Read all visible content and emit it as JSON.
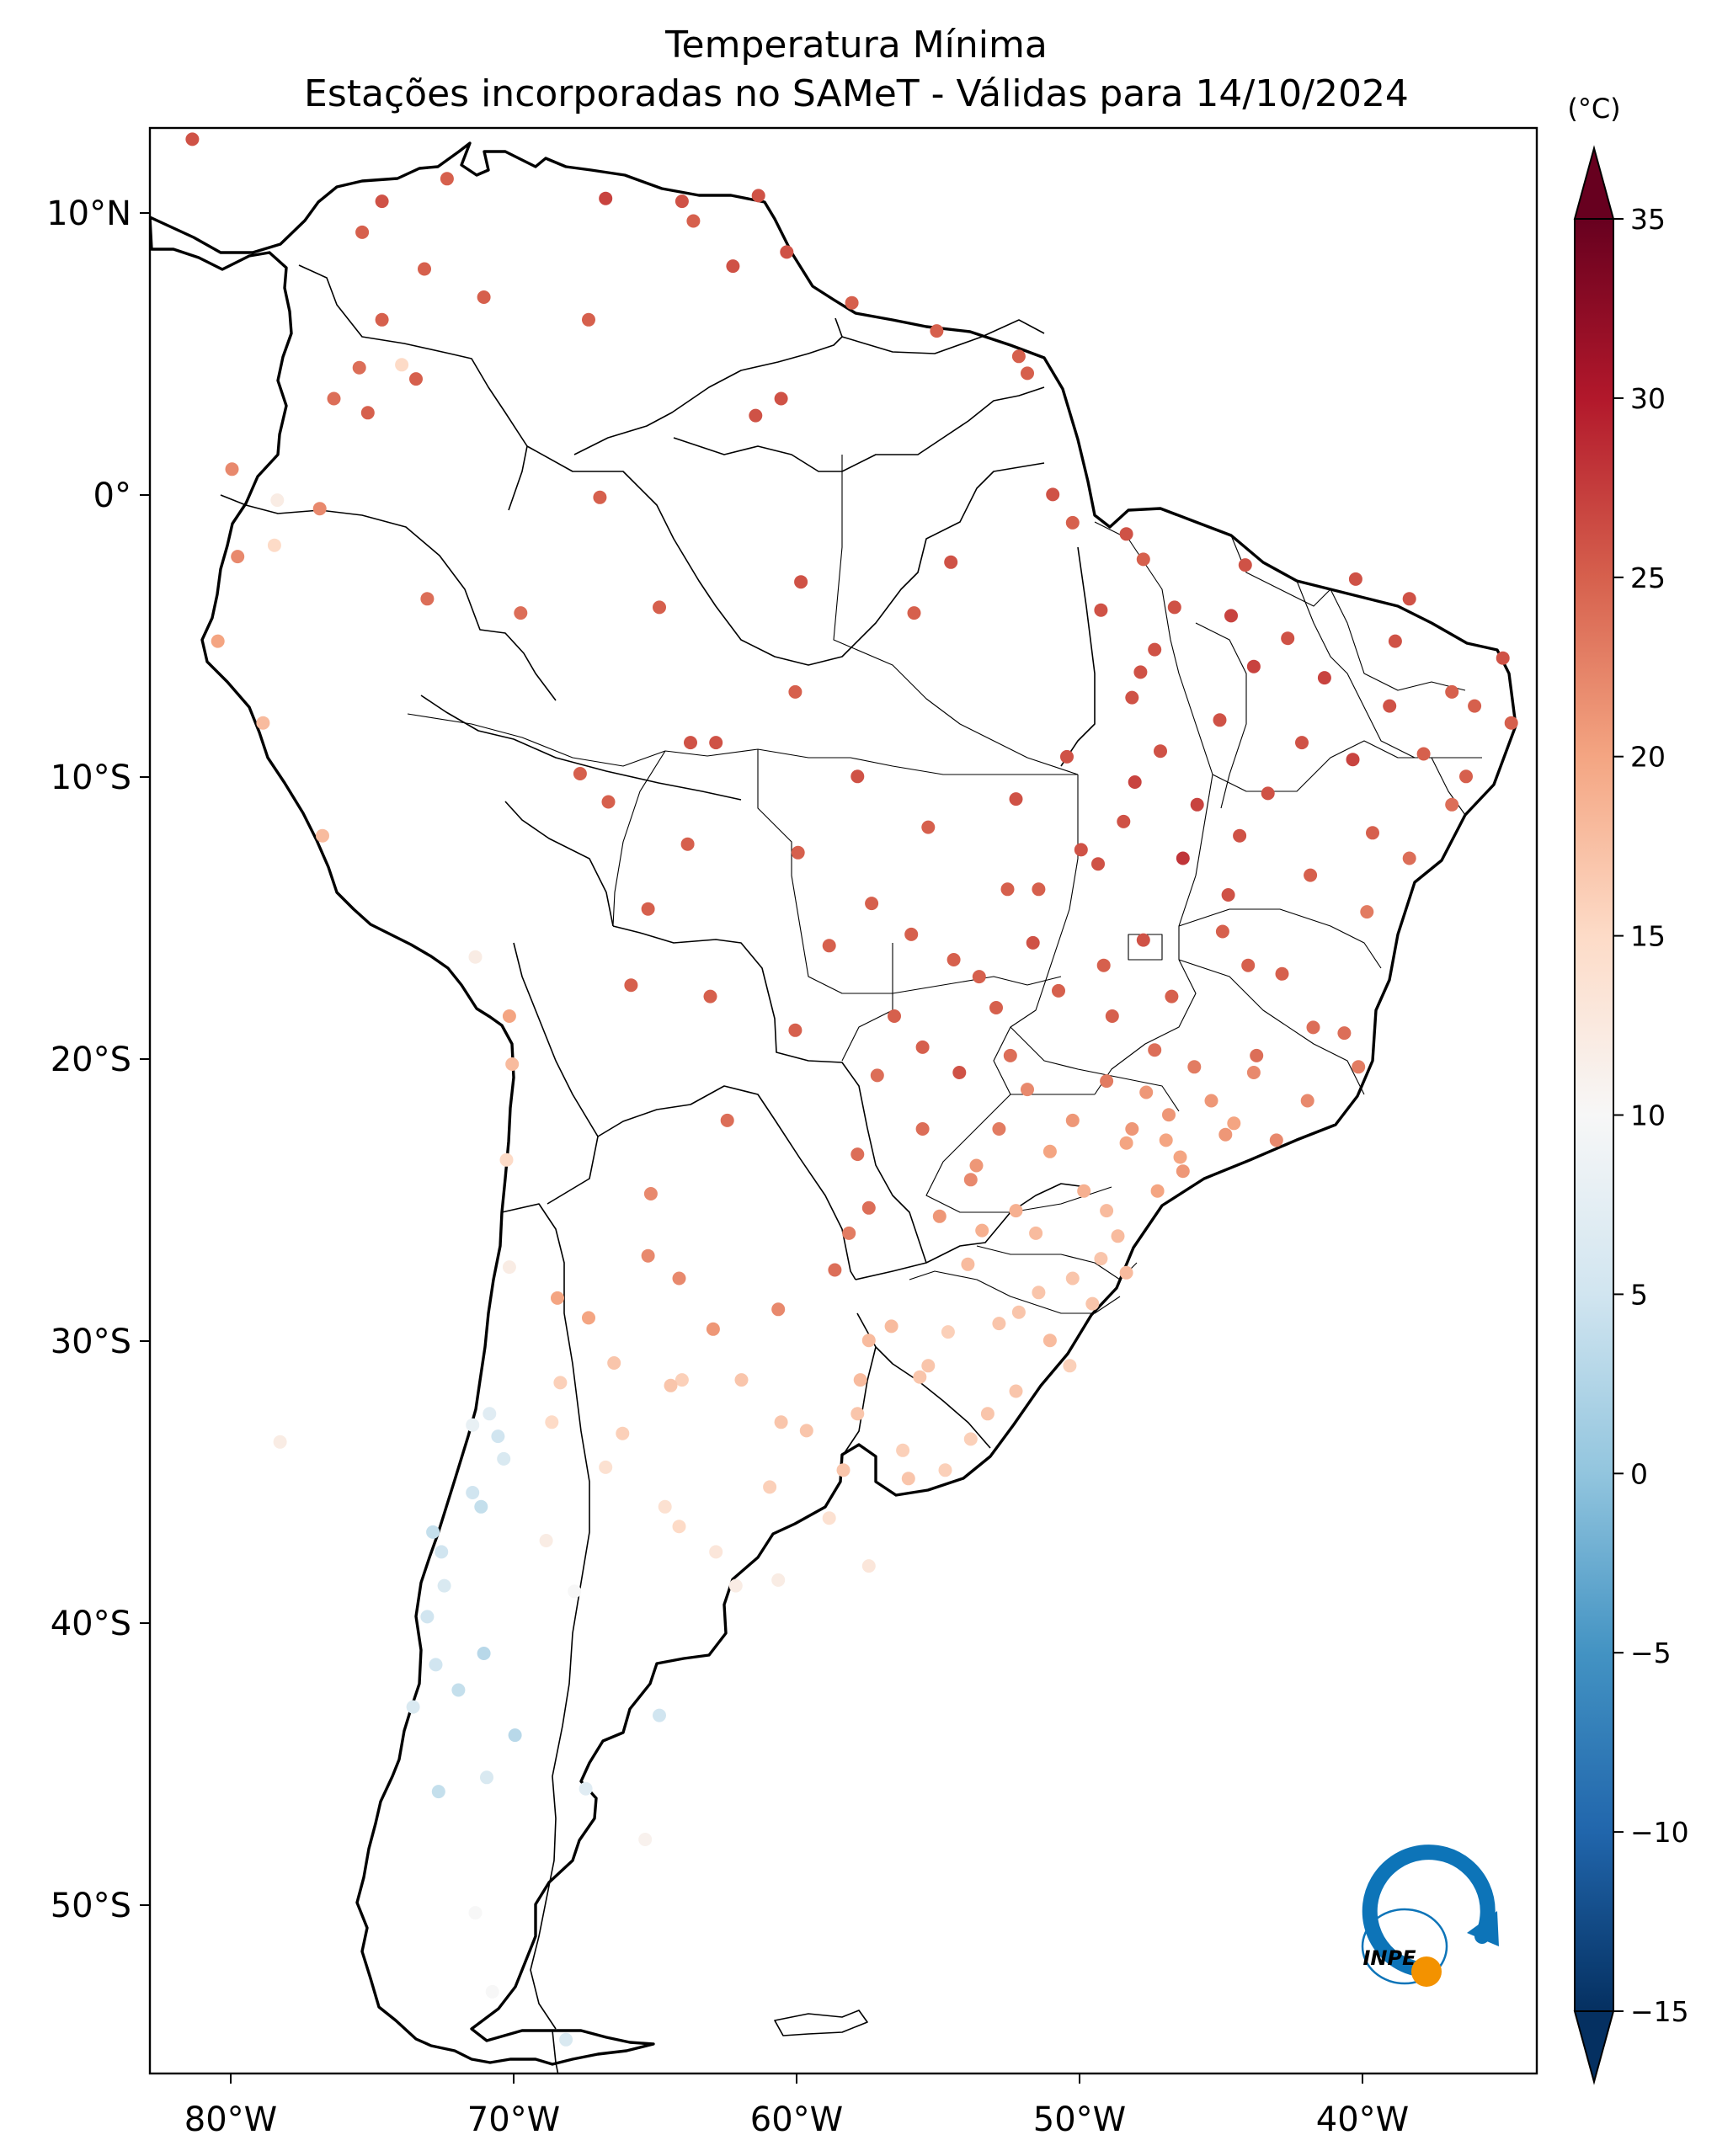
{
  "title": {
    "line1": "Temperatura Mínima",
    "line2": "Estações incorporadas no SAMeT - Válidas para 14/10/2024"
  },
  "map": {
    "lon_range": [
      -83,
      -34
    ],
    "lat_range": [
      -56,
      13
    ],
    "lon_ticks": [
      {
        "value": -80,
        "label": "80°W"
      },
      {
        "value": -70,
        "label": "70°W"
      },
      {
        "value": -60,
        "label": "60°W"
      },
      {
        "value": -50,
        "label": "50°W"
      },
      {
        "value": -40,
        "label": "40°W"
      }
    ],
    "lat_ticks": [
      {
        "value": 10,
        "label": "10°N"
      },
      {
        "value": 0,
        "label": "0°"
      },
      {
        "value": -10,
        "label": "10°S"
      },
      {
        "value": -20,
        "label": "20°S"
      },
      {
        "value": -30,
        "label": "30°S"
      },
      {
        "value": -40,
        "label": "40°S"
      },
      {
        "value": -50,
        "label": "50°S"
      }
    ]
  },
  "colorbar": {
    "unit": "(°C)",
    "min": -15,
    "max": 35,
    "ticks": [
      {
        "value": 35,
        "label": "35"
      },
      {
        "value": 30,
        "label": "30"
      },
      {
        "value": 25,
        "label": "25"
      },
      {
        "value": 20,
        "label": "20"
      },
      {
        "value": 15,
        "label": "15"
      },
      {
        "value": 10,
        "label": "10"
      },
      {
        "value": 5,
        "label": "5"
      },
      {
        "value": 0,
        "label": "0"
      },
      {
        "value": -5,
        "label": "−5"
      },
      {
        "value": -10,
        "label": "−10"
      },
      {
        "value": -15,
        "label": "−15"
      }
    ],
    "colors": [
      "#053061",
      "#2166ac",
      "#4393c3",
      "#92c5de",
      "#d1e5f0",
      "#f7f7f7",
      "#fddbc7",
      "#f4a582",
      "#d6604d",
      "#b2182b",
      "#67001f"
    ]
  },
  "logo": {
    "text": "INPE",
    "colors": {
      "arc": "#0d74b8",
      "sun": "#f39200"
    }
  },
  "stations": [
    [
      -81.5,
      12.6,
      26
    ],
    [
      -74.8,
      10.4,
      26
    ],
    [
      -72.5,
      11.2,
      25
    ],
    [
      -75.5,
      9.3,
      25
    ],
    [
      -73.3,
      8.0,
      25
    ],
    [
      -74.8,
      6.2,
      25
    ],
    [
      -75.6,
      4.5,
      24
    ],
    [
      -74.1,
      4.6,
      15
    ],
    [
      -76.5,
      3.4,
      24
    ],
    [
      -75.3,
      2.9,
      25
    ],
    [
      -73.6,
      4.1,
      25
    ],
    [
      -71.2,
      7.0,
      25
    ],
    [
      -67.5,
      6.2,
      25
    ],
    [
      -66.9,
      10.5,
      27
    ],
    [
      -64.2,
      10.4,
      26
    ],
    [
      -63.8,
      9.7,
      25
    ],
    [
      -61.5,
      10.6,
      26
    ],
    [
      -60.5,
      8.6,
      26
    ],
    [
      -62.4,
      8.1,
      26
    ],
    [
      -58.2,
      6.8,
      25
    ],
    [
      -55.2,
      5.8,
      25
    ],
    [
      -52.3,
      4.9,
      25
    ],
    [
      -52.0,
      4.3,
      25
    ],
    [
      -61.6,
      2.8,
      26
    ],
    [
      -60.7,
      3.4,
      26
    ],
    [
      -51.1,
      0.0,
      26
    ],
    [
      -50.4,
      -1.0,
      25
    ],
    [
      -48.5,
      -1.4,
      26
    ],
    [
      -47.9,
      -2.3,
      25
    ],
    [
      -44.3,
      -2.5,
      26
    ],
    [
      -42.8,
      -5.1,
      26
    ],
    [
      -38.5,
      -3.7,
      26
    ],
    [
      -35.2,
      -5.8,
      26
    ],
    [
      -34.9,
      -8.1,
      25
    ],
    [
      -37.0,
      -7.0,
      25
    ],
    [
      -40.5,
      -9.4,
      27
    ],
    [
      -39.2,
      -7.5,
      26
    ],
    [
      -36.5,
      -10.0,
      25
    ],
    [
      -37.0,
      -11.0,
      24
    ],
    [
      -38.5,
      -12.9,
      24
    ],
    [
      -40.0,
      -14.8,
      23
    ],
    [
      -42.0,
      -13.5,
      25
    ],
    [
      -44.5,
      -12.1,
      26
    ],
    [
      -46.5,
      -12.9,
      28
    ],
    [
      -48.2,
      -10.2,
      27
    ],
    [
      -48.3,
      -7.2,
      26
    ],
    [
      -47.5,
      -5.5,
      26
    ],
    [
      -49.4,
      -4.1,
      26
    ],
    [
      -54.7,
      -2.4,
      26
    ],
    [
      -56.0,
      -4.2,
      25
    ],
    [
      -60.0,
      -3.1,
      26
    ],
    [
      -63.0,
      -8.8,
      26
    ],
    [
      -67.8,
      -9.9,
      25
    ],
    [
      -64.0,
      -12.4,
      25
    ],
    [
      -60.1,
      -12.7,
      25
    ],
    [
      -56.1,
      -15.6,
      25
    ],
    [
      -54.6,
      -16.5,
      25
    ],
    [
      -51.8,
      -15.9,
      26
    ],
    [
      -49.3,
      -16.7,
      25
    ],
    [
      -47.9,
      -15.8,
      26
    ],
    [
      -45.1,
      -15.5,
      25
    ],
    [
      -43.9,
      -19.9,
      24
    ],
    [
      -40.3,
      -20.3,
      23
    ],
    [
      -43.2,
      -22.9,
      22
    ],
    [
      -46.6,
      -23.5,
      20
    ],
    [
      -47.1,
      -22.9,
      20
    ],
    [
      -49.2,
      -25.4,
      18
    ],
    [
      -51.2,
      -23.3,
      20
    ],
    [
      -53.8,
      -23.8,
      21
    ],
    [
      -48.5,
      -27.6,
      18
    ],
    [
      -51.2,
      -30.0,
      18
    ],
    [
      -52.4,
      -31.8,
      17
    ],
    [
      -55.8,
      -31.3,
      17
    ],
    [
      -56.2,
      -34.9,
      17
    ],
    [
      -54.0,
      -33.5,
      16
    ],
    [
      -57.6,
      -30.0,
      18
    ],
    [
      -57.9,
      -31.4,
      18
    ],
    [
      -58.5,
      -34.6,
      17
    ],
    [
      -60.7,
      -32.9,
      17
    ],
    [
      -62.1,
      -31.4,
      17
    ],
    [
      -64.2,
      -31.4,
      16
    ],
    [
      -65.3,
      -24.8,
      22
    ],
    [
      -65.4,
      -27.0,
      22
    ],
    [
      -64.3,
      -27.8,
      22
    ],
    [
      -68.8,
      -32.9,
      15
    ],
    [
      -66.3,
      -33.3,
      16
    ],
    [
      -68.5,
      -31.5,
      16
    ],
    [
      -67.5,
      -29.2,
      20
    ],
    [
      -63.0,
      -37.5,
      13
    ],
    [
      -62.3,
      -38.7,
      12
    ],
    [
      -57.6,
      -38.0,
      13
    ],
    [
      -60.8,
      -38.5,
      12
    ],
    [
      -64.3,
      -36.6,
      15
    ],
    [
      -68.0,
      -38.9,
      10
    ],
    [
      -65.0,
      -43.3,
      5
    ],
    [
      -65.5,
      -47.7,
      11
    ],
    [
      -68.3,
      -54.8,
      6
    ],
    [
      -70.9,
      -53.1,
      10
    ],
    [
      -71.5,
      -50.3,
      10
    ],
    [
      -67.6,
      -45.9,
      7
    ],
    [
      -71.2,
      -41.1,
      3
    ],
    [
      -72.9,
      -41.5,
      5
    ],
    [
      -73.2,
      -39.8,
      5
    ],
    [
      -72.6,
      -38.7,
      6
    ],
    [
      -73.0,
      -36.8,
      4
    ],
    [
      -71.6,
      -35.4,
      5
    ],
    [
      -70.7,
      -33.4,
      5
    ],
    [
      -71.6,
      -33.0,
      8
    ],
    [
      -70.3,
      -27.4,
      12
    ],
    [
      -70.4,
      -23.6,
      15
    ],
    [
      -70.2,
      -20.2,
      18
    ],
    [
      -70.3,
      -18.5,
      20
    ],
    [
      -71.5,
      -16.4,
      12
    ],
    [
      -76.9,
      -12.1,
      18
    ],
    [
      -79.0,
      -8.1,
      18
    ],
    [
      -80.6,
      -5.2,
      20
    ],
    [
      -79.9,
      -2.2,
      22
    ],
    [
      -78.5,
      -0.2,
      12
    ],
    [
      -78.6,
      -1.8,
      15
    ],
    [
      -80.1,
      0.9,
      22
    ],
    [
      -77.0,
      -0.5,
      22
    ],
    [
      -73.2,
      -3.7,
      24
    ],
    [
      -69.9,
      -4.2,
      24
    ],
    [
      -67.1,
      -0.1,
      25
    ],
    [
      -65.0,
      -4.0,
      25
    ],
    [
      -60.2,
      -7.0,
      25
    ],
    [
      -58.0,
      -10.0,
      26
    ],
    [
      -55.5,
      -11.8,
      25
    ],
    [
      -52.4,
      -10.8,
      26
    ],
    [
      -51.6,
      -14.0,
      25
    ],
    [
      -57.5,
      -14.5,
      25
    ],
    [
      -59.0,
      -16.0,
      25
    ],
    [
      -63.9,
      -8.8,
      26
    ],
    [
      -66.8,
      -10.9,
      25
    ],
    [
      -65.4,
      -14.7,
      25
    ],
    [
      -66.0,
      -17.4,
      25
    ],
    [
      -63.2,
      -17.8,
      25
    ],
    [
      -60.2,
      -19.0,
      25
    ],
    [
      -62.6,
      -22.2,
      24
    ],
    [
      -58.0,
      -23.4,
      24
    ],
    [
      -57.6,
      -25.3,
      24
    ],
    [
      -55.7,
      -22.5,
      24
    ],
    [
      -54.4,
      -20.5,
      26
    ],
    [
      -53.1,
      -18.2,
      25
    ],
    [
      -49.2,
      -20.8,
      23
    ],
    [
      -47.8,
      -21.2,
      21
    ],
    [
      -45.5,
      -21.5,
      21
    ],
    [
      -44.7,
      -22.3,
      20
    ],
    [
      -42.1,
      -21.5,
      22
    ],
    [
      -40.8,
      -19.1,
      24
    ],
    [
      -41.9,
      -18.9,
      24
    ],
    [
      -43.0,
      -17.0,
      25
    ],
    [
      -44.2,
      -16.7,
      25
    ],
    [
      -46.9,
      -17.8,
      25
    ],
    [
      -49.0,
      -18.5,
      25
    ],
    [
      -50.9,
      -17.6,
      25
    ],
    [
      -52.6,
      -19.9,
      24
    ],
    [
      -52.0,
      -21.1,
      22
    ],
    [
      -50.4,
      -22.2,
      21
    ],
    [
      -48.5,
      -23.0,
      20
    ],
    [
      -46.5,
      -24.0,
      21
    ],
    [
      -47.4,
      -24.7,
      20
    ],
    [
      -50.0,
      -24.7,
      19
    ],
    [
      -52.4,
      -25.4,
      19
    ],
    [
      -53.6,
      -26.1,
      19
    ],
    [
      -51.7,
      -26.2,
      18
    ],
    [
      -50.4,
      -27.8,
      17
    ],
    [
      -49.7,
      -28.7,
      17
    ],
    [
      -51.6,
      -28.3,
      17
    ],
    [
      -53.0,
      -29.4,
      17
    ],
    [
      -54.8,
      -29.7,
      16
    ],
    [
      -52.3,
      -29.0,
      17
    ],
    [
      -50.5,
      -30.9,
      16
    ],
    [
      -53.4,
      -32.6,
      17
    ],
    [
      -55.5,
      -30.9,
      17
    ],
    [
      -56.8,
      -29.5,
      18
    ],
    [
      -54.1,
      -27.3,
      18
    ],
    [
      -48.8,
      -26.3,
      18
    ],
    [
      -49.4,
      -27.1,
      17
    ],
    [
      -47.0,
      -22.0,
      21
    ],
    [
      -45.0,
      -22.7,
      21
    ],
    [
      -44.0,
      -20.5,
      22
    ],
    [
      -46.1,
      -20.3,
      23
    ],
    [
      -47.5,
      -19.7,
      24
    ],
    [
      -48.3,
      -22.5,
      21
    ],
    [
      -53.0,
      -22.5,
      23
    ],
    [
      -54.0,
      -24.3,
      22
    ],
    [
      -55.1,
      -25.6,
      21
    ],
    [
      -44.9,
      -14.2,
      26
    ],
    [
      -46.0,
      -11.0,
      27
    ],
    [
      -43.5,
      -10.6,
      26
    ],
    [
      -42.3,
      -8.8,
      26
    ],
    [
      -41.5,
      -6.5,
      27
    ],
    [
      -44.0,
      -6.1,
      27
    ],
    [
      -45.2,
      -8.0,
      26
    ],
    [
      -47.3,
      -9.1,
      26
    ],
    [
      -48.6,
      -11.6,
      26
    ],
    [
      -49.5,
      -13.1,
      26
    ],
    [
      -39.8,
      -12.0,
      25
    ],
    [
      -38.0,
      -9.2,
      25
    ],
    [
      -36.2,
      -7.5,
      25
    ],
    [
      -39.0,
      -5.2,
      26
    ],
    [
      -40.4,
      -3.0,
      26
    ],
    [
      -44.8,
      -4.3,
      27
    ],
    [
      -46.8,
      -4.0,
      26
    ],
    [
      -48.0,
      -6.3,
      26
    ],
    [
      -50.6,
      -9.3,
      26
    ],
    [
      -50.1,
      -12.6,
      26
    ],
    [
      -52.7,
      -14.0,
      25
    ],
    [
      -53.7,
      -17.1,
      25
    ],
    [
      -56.7,
      -18.5,
      25
    ],
    [
      -57.3,
      -20.6,
      24
    ],
    [
      -55.7,
      -19.6,
      25
    ],
    [
      -58.8,
      -27.5,
      24
    ],
    [
      -58.3,
      -26.2,
      23
    ],
    [
      -60.8,
      -28.9,
      22
    ],
    [
      -63.1,
      -29.6,
      21
    ],
    [
      -64.6,
      -31.6,
      17
    ],
    [
      -66.6,
      -30.8,
      17
    ],
    [
      -68.6,
      -28.5,
      20
    ],
    [
      -66.9,
      -34.5,
      14
    ],
    [
      -64.8,
      -35.9,
      14
    ],
    [
      -61.1,
      -35.2,
      16
    ],
    [
      -59.0,
      -36.3,
      14
    ],
    [
      -59.8,
      -33.2,
      17
    ],
    [
      -58.0,
      -32.6,
      17
    ],
    [
      -56.4,
      -33.9,
      16
    ],
    [
      -54.9,
      -34.6,
      16
    ],
    [
      -72.8,
      -46.0,
      4
    ],
    [
      -71.1,
      -45.5,
      6
    ],
    [
      -72.1,
      -42.4,
      4
    ],
    [
      -70.1,
      -44.0,
      3
    ],
    [
      -73.7,
      -43.0,
      6
    ],
    [
      -72.7,
      -37.5,
      5
    ],
    [
      -71.3,
      -35.9,
      4
    ],
    [
      -70.5,
      -34.2,
      6
    ],
    [
      -71.0,
      -32.6,
      7
    ],
    [
      -69.0,
      -37.1,
      12
    ],
    [
      -78.4,
      -33.6,
      12
    ]
  ]
}
